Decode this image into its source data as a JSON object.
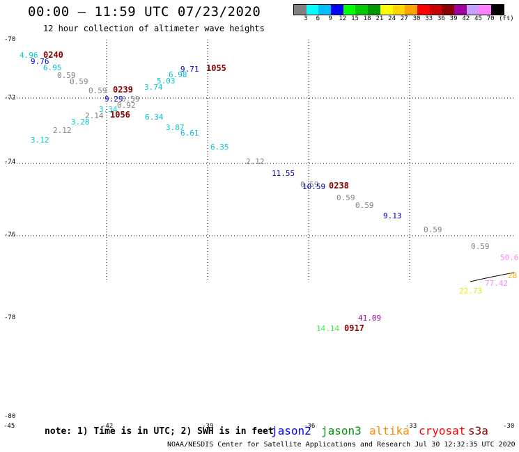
{
  "header": {
    "title": "00:00 – 11:59 UTC 07/23/2020",
    "subtitle": "12 hour collection of altimeter wave heights"
  },
  "colorbar": {
    "colors": [
      "#808080",
      "#00ffff",
      "#00bfff",
      "#0000ff",
      "#00ff00",
      "#00c800",
      "#009600",
      "#ffff00",
      "#ffd700",
      "#ffa500",
      "#ff0000",
      "#c80000",
      "#8b0000",
      "#a000a0",
      "#c8a0ff",
      "#ff80ff",
      "#000000"
    ],
    "ticks": [
      "3",
      "6",
      "9",
      "12",
      "15",
      "18",
      "21",
      "24",
      "27",
      "30",
      "33",
      "36",
      "39",
      "42",
      "45",
      "70"
    ],
    "unit": "(ft)"
  },
  "axes": {
    "lat_labels": [
      "-70",
      "-72",
      "-74",
      "-76",
      "-78",
      "-80"
    ],
    "lon_labels": [
      "-45",
      "-42",
      "-39",
      "-36",
      "-33",
      "-30"
    ]
  },
  "points": [
    {
      "label": "4.96",
      "color": "#00cccc"
    },
    {
      "label": "9.76",
      "color": "#0000cc"
    },
    {
      "label": "6.95",
      "color": "#00bbdd"
    },
    {
      "label": "0.59",
      "color": "#808080"
    },
    {
      "label": "0.59",
      "color": "#808080"
    },
    {
      "label": "0.59",
      "color": "#808080"
    },
    {
      "label": "9.29",
      "color": "#0000cc"
    },
    {
      "label": "0.59",
      "color": "#808080"
    },
    {
      "label": "0.92",
      "color": "#808080"
    },
    {
      "label": "3.34",
      "color": "#00cccc"
    },
    {
      "label": "2.14",
      "color": "#808080"
    },
    {
      "label": "3.28",
      "color": "#00cccc"
    },
    {
      "label": "2.12",
      "color": "#808080"
    },
    {
      "label": "3.12",
      "color": "#00cccc"
    },
    {
      "label": "9.71",
      "color": "#0000cc"
    },
    {
      "label": "6.98",
      "color": "#00bbdd"
    },
    {
      "label": "5.03",
      "color": "#00cccc"
    },
    {
      "label": "3.74",
      "color": "#00cccc"
    },
    {
      "label": "6.34",
      "color": "#00bbdd"
    },
    {
      "label": "3.87",
      "color": "#00cccc"
    },
    {
      "label": "6.61",
      "color": "#00bbdd"
    },
    {
      "label": "6.35",
      "color": "#00cccc"
    },
    {
      "label": "2.12",
      "color": "#808080"
    },
    {
      "label": "11.55",
      "color": "#0000aa"
    },
    {
      "label": "0.59",
      "color": "#808080"
    },
    {
      "label": "10.59",
      "color": "#0000aa"
    },
    {
      "label": "0.59",
      "color": "#808080"
    },
    {
      "label": "0.59",
      "color": "#808080"
    },
    {
      "label": "9.13",
      "color": "#0000cc"
    },
    {
      "label": "0.59",
      "color": "#808080"
    },
    {
      "label": "0.59",
      "color": "#808080"
    },
    {
      "label": "50.6",
      "color": "#ff80ff"
    },
    {
      "label": "28",
      "color": "#ffaa00"
    },
    {
      "label": "22.73",
      "color": "#e6e600"
    },
    {
      "label": "77.42",
      "color": "#ff80ff"
    },
    {
      "label": "41.09",
      "color": "#990099"
    },
    {
      "label": "14.14",
      "color": "#44ee44"
    }
  ],
  "pass_times": [
    "0240",
    "0239",
    "1056",
    "1055",
    "0238",
    "0917"
  ],
  "footnote": "note: 1) Time is in UTC; 2) SWH is in feet",
  "legend": [
    {
      "label": "jason2",
      "color": "#0000ff"
    },
    {
      "label": "jason3",
      "color": "#009600"
    },
    {
      "label": "altika",
      "color": "#ff8c00"
    },
    {
      "label": "cryosat",
      "color": "#ff0000"
    },
    {
      "label": "s3a",
      "color": "#8b0000"
    }
  ],
  "footer": "NOAA/NESDIS Center for Satellite Applications and Research    Jul 30 12:32:35 UTC 2020"
}
